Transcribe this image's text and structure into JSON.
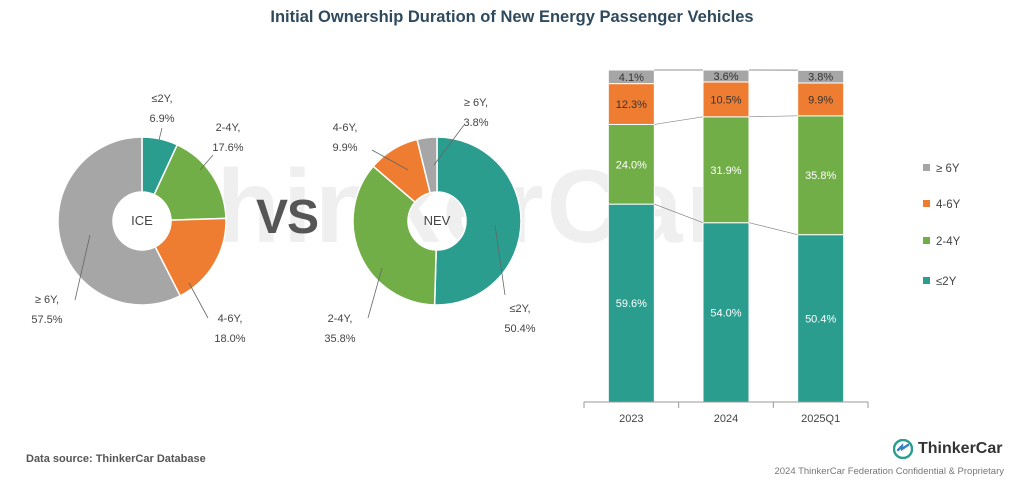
{
  "header": {
    "title": "Initial Ownership Duration of New Energy Passenger Vehicles"
  },
  "vs_text": "VS",
  "watermark_text": "ThinkerCar",
  "brand": {
    "name": "ThinkerCar",
    "logo_icon": "thinkercar-logo-icon"
  },
  "footer": {
    "data_source": "Data source: ThinkerCar Database",
    "confidential": "2024 ThinkerCar Federation Confidential & Proprietary"
  },
  "colors": {
    "le2y": "#2a9d8f",
    "y2to4": "#72ae47",
    "y4to6": "#ef7d31",
    "ge6y": "#a6a6a6"
  },
  "chart_data": [
    {
      "type": "pie",
      "variant": "donut",
      "center_label": "ICE",
      "slices": [
        {
          "label": "≤2Y",
          "value": 6.9,
          "value_text": "6.9%",
          "color": "#2a9d8f"
        },
        {
          "label": "2-4Y",
          "value": 17.6,
          "value_text": "17.6%",
          "color": "#72ae47"
        },
        {
          "label": "4-6Y",
          "value": 18.0,
          "value_text": "18.0%",
          "color": "#ef7d31"
        },
        {
          "label": "≥ 6Y",
          "value": 57.5,
          "value_text": "57.5%",
          "color": "#a6a6a6"
        }
      ]
    },
    {
      "type": "pie",
      "variant": "donut",
      "center_label": "NEV",
      "slices": [
        {
          "label": "≤2Y",
          "value": 50.4,
          "value_text": "50.4%",
          "color": "#2a9d8f"
        },
        {
          "label": "2-4Y",
          "value": 35.8,
          "value_text": "35.8%",
          "color": "#72ae47"
        },
        {
          "label": "4-6Y",
          "value": 9.9,
          "value_text": "9.9%",
          "color": "#ef7d31"
        },
        {
          "label": "≥ 6Y",
          "value": 3.8,
          "value_text": "3.8%",
          "color": "#a6a6a6"
        }
      ]
    },
    {
      "type": "bar",
      "stacked": true,
      "percent": true,
      "categories": [
        "2023",
        "2024",
        "2025Q1"
      ],
      "ylim": [
        0,
        100
      ],
      "legend_position": "right",
      "series": [
        {
          "name": "≤2Y",
          "color": "#2a9d8f",
          "values": [
            59.6,
            54.0,
            50.4
          ],
          "labels": [
            "59.6%",
            "54.0%",
            "50.4%"
          ]
        },
        {
          "name": "2-4Y",
          "color": "#72ae47",
          "values": [
            24.0,
            31.9,
            35.8
          ],
          "labels": [
            "24.0%",
            "31.9%",
            "35.8%"
          ]
        },
        {
          "name": "4-6Y",
          "color": "#ef7d31",
          "values": [
            12.3,
            10.5,
            9.9
          ],
          "labels": [
            "12.3%",
            "10.5%",
            "9.9%"
          ]
        },
        {
          "name": "≥ 6Y",
          "color": "#a6a6a6",
          "values": [
            4.1,
            3.6,
            3.8
          ],
          "labels": [
            "4.1%",
            "3.6%",
            "3.8%"
          ]
        }
      ],
      "legend_order": [
        "≥ 6Y",
        "4-6Y",
        "2-4Y",
        "≤2Y"
      ]
    }
  ]
}
